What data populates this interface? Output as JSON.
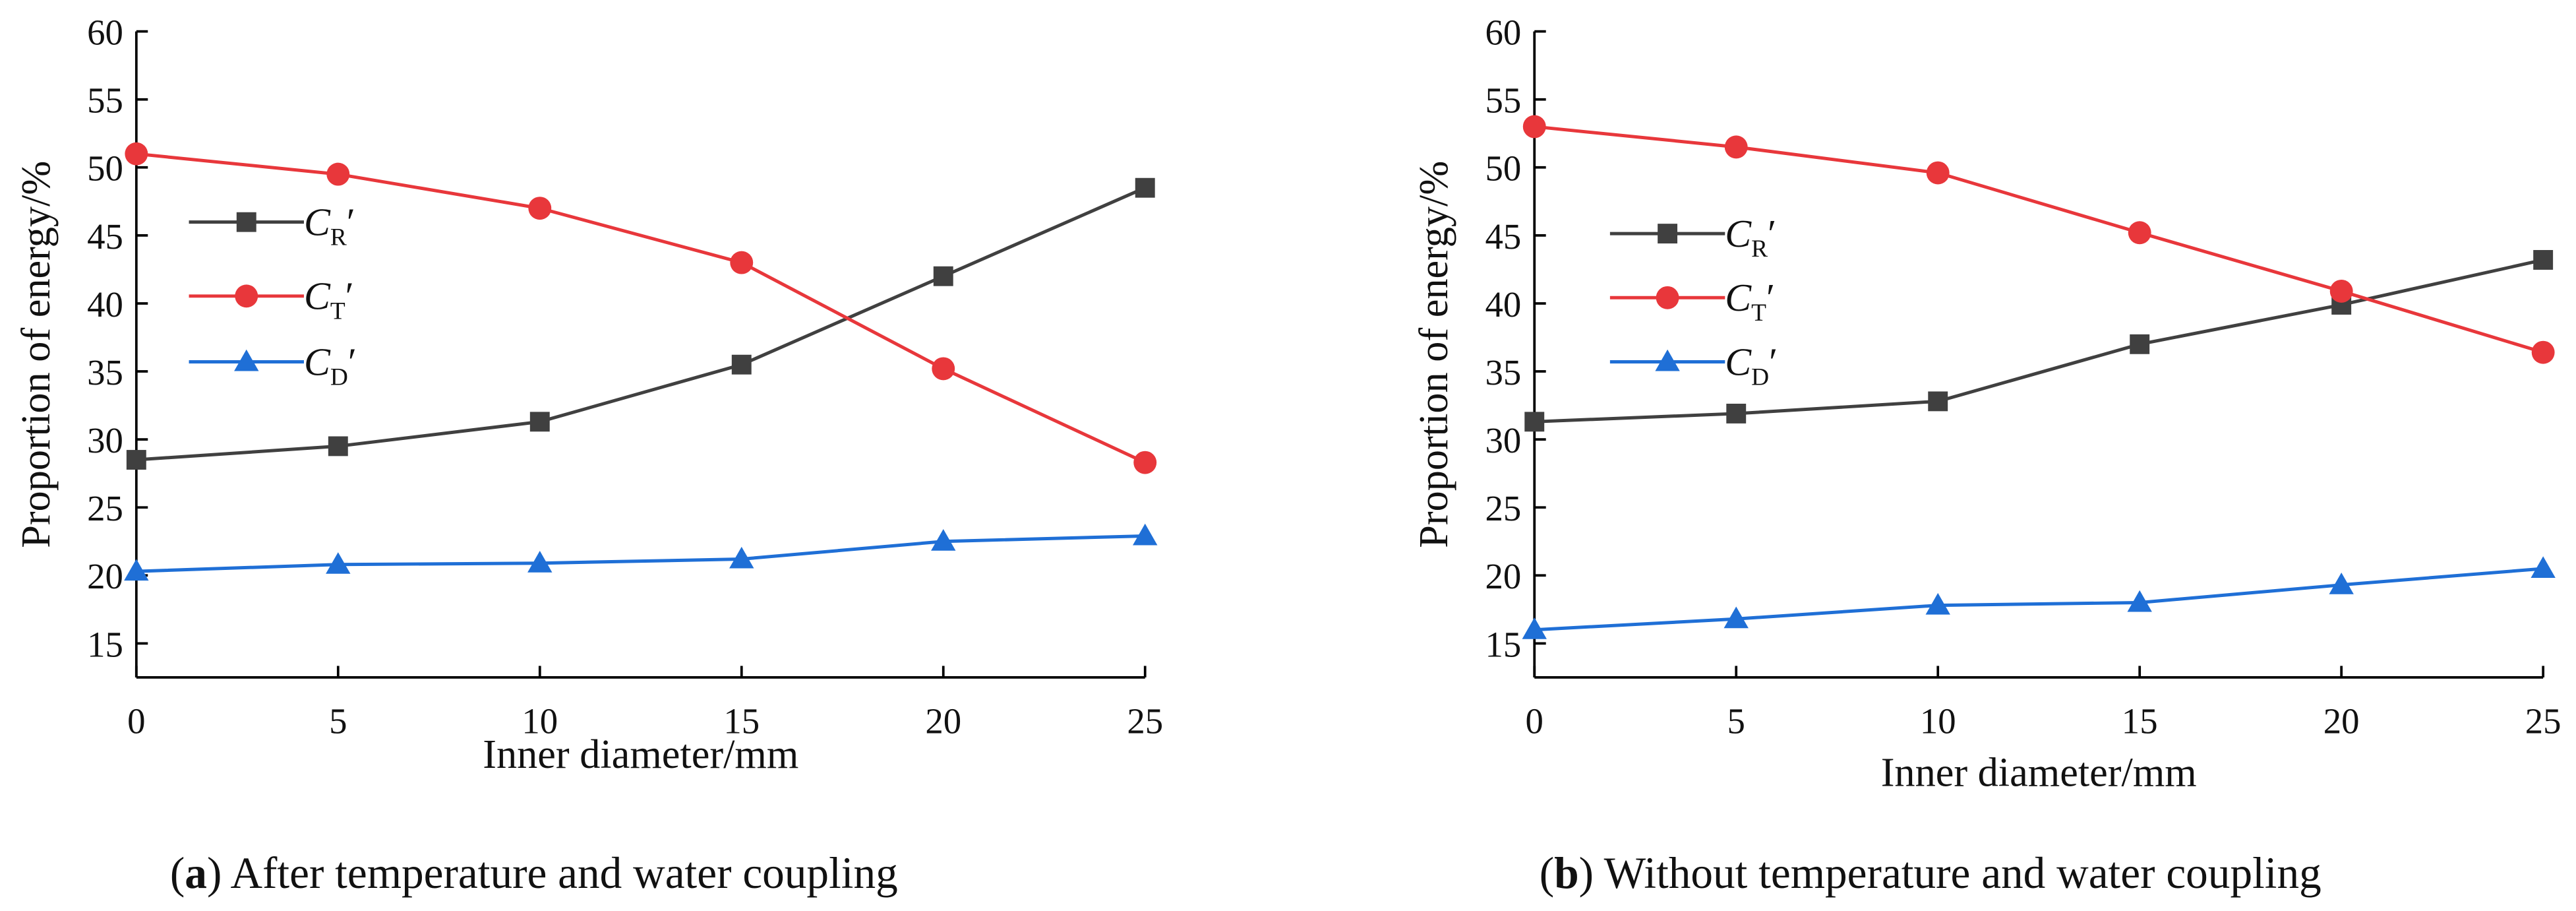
{
  "chart_data": [
    {
      "type": "line",
      "xlabel": "Inner diameter/mm",
      "ylabel": "Proportion of energy/%",
      "caption": "(a) After temperature and water coupling",
      "x": [
        0,
        5,
        10,
        15,
        20,
        25
      ],
      "series": [
        {
          "name": "CR′",
          "color": "#404040",
          "marker": "square",
          "values": [
            28.5,
            29.5,
            31.3,
            35.5,
            42,
            48.5
          ]
        },
        {
          "name": "CT′",
          "color": "#e8373b",
          "marker": "circle",
          "values": [
            51,
            49.5,
            47,
            43,
            35.2,
            28.3
          ]
        },
        {
          "name": "CD′",
          "color": "#1f6fd6",
          "marker": "triangle",
          "values": [
            20.3,
            20.8,
            20.9,
            21.2,
            22.5,
            22.9
          ]
        }
      ],
      "xlim": [
        0,
        25
      ],
      "xticks": [
        0,
        5,
        10,
        15,
        20,
        25
      ],
      "ylim": [
        12.5,
        60
      ],
      "yticks": [
        15,
        20,
        25,
        30,
        35,
        40,
        45,
        50,
        55,
        60
      ],
      "legend": "center left",
      "grid": false
    },
    {
      "type": "line",
      "xlabel": "Inner diameter/mm",
      "ylabel": "Proportion of energy/%",
      "caption": "(b) Without temperature and water coupling",
      "x": [
        0,
        5,
        10,
        15,
        20,
        25
      ],
      "series": [
        {
          "name": "CR′",
          "color": "#404040",
          "marker": "square",
          "values": [
            31.3,
            31.9,
            32.8,
            37,
            39.9,
            43.2
          ]
        },
        {
          "name": "CT′",
          "color": "#e8373b",
          "marker": "circle",
          "values": [
            53,
            51.5,
            49.6,
            45.2,
            40.9,
            36.4
          ]
        },
        {
          "name": "CD′",
          "color": "#1f6fd6",
          "marker": "triangle",
          "values": [
            16,
            16.8,
            17.8,
            18,
            19.3,
            20.5
          ]
        }
      ],
      "xlim": [
        0,
        25
      ],
      "xticks": [
        0,
        5,
        10,
        15,
        20,
        25
      ],
      "ylim": [
        12.5,
        60
      ],
      "yticks": [
        15,
        20,
        25,
        30,
        35,
        40,
        45,
        50,
        55,
        60
      ],
      "legend": "center left",
      "grid": false
    }
  ]
}
